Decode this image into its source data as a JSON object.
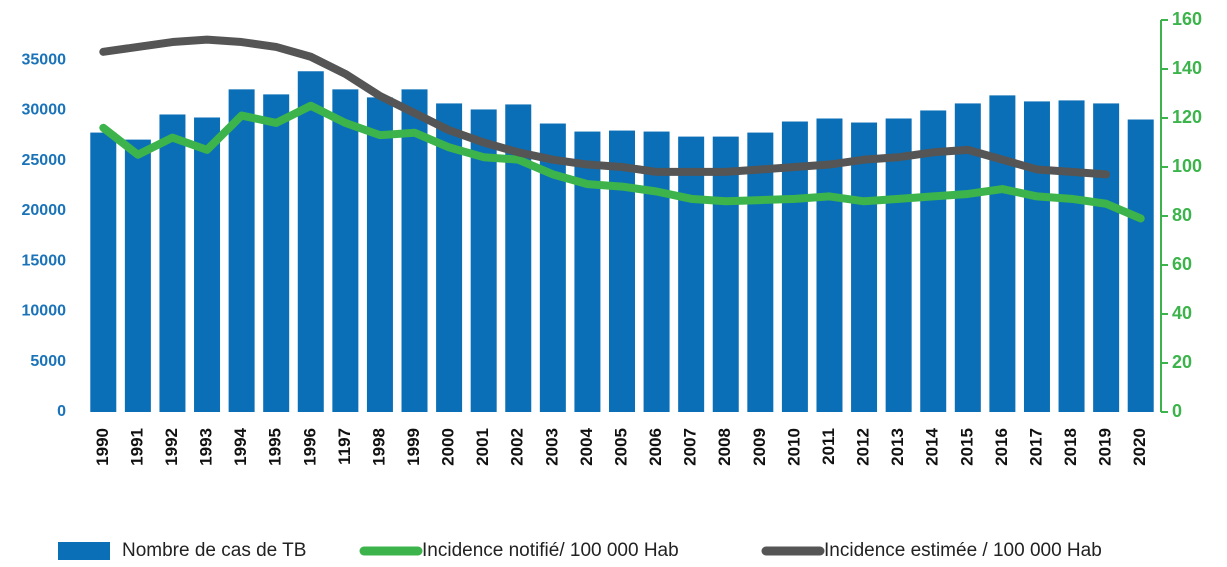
{
  "chart_data": {
    "type": "bar_line",
    "categories": [
      "1990",
      "1991",
      "1992",
      "1993",
      "1994",
      "1995",
      "1996",
      "1197",
      "1998",
      "1999",
      "2000",
      "2001",
      "2002",
      "2003",
      "2004",
      "2005",
      "2006",
      "2007",
      "2008",
      "2009",
      "2010",
      "2011",
      "2012",
      "2013",
      "2014",
      "2015",
      "2016",
      "2017",
      "2018",
      "2019",
      "2020"
    ],
    "series": [
      {
        "name": "Nombre de cas de TB",
        "color": "#0a6fb7",
        "kind": "bar",
        "values": [
          27800,
          27100,
          29600,
          29300,
          32100,
          31600,
          33900,
          32100,
          31300,
          32100,
          30700,
          30100,
          30600,
          28700,
          27900,
          28000,
          27900,
          27400,
          27400,
          27800,
          28900,
          29200,
          28800,
          29200,
          30000,
          30700,
          31500,
          30900,
          31000,
          30700,
          29100
        ]
      },
      {
        "name": "Incidence notifié/ 100 000 Hab",
        "color": "#3cb44b",
        "kind": "line",
        "axis": "y2",
        "values": [
          116,
          105,
          112,
          107,
          121,
          118,
          125,
          118,
          113,
          114,
          108,
          104,
          103,
          97,
          93,
          92,
          90,
          87,
          86,
          86.5,
          87,
          88,
          86,
          87,
          88,
          89,
          91,
          88,
          87,
          85,
          79
        ]
      },
      {
        "name": "Incidence estimée / 100 000 Hab",
        "color": "#555555",
        "kind": "line",
        "axis": "y2",
        "values": [
          147,
          149,
          151,
          152,
          151,
          149,
          145,
          138,
          129,
          122,
          115,
          110,
          106,
          103,
          101,
          100,
          98,
          98,
          98,
          99,
          100,
          101,
          103,
          104,
          106,
          107,
          103,
          99,
          98,
          97,
          null
        ]
      }
    ],
    "ylim": [
      0,
      39000
    ],
    "yticks": [
      0,
      5000,
      10000,
      15000,
      20000,
      25000,
      30000,
      35000
    ],
    "y2lim": [
      0,
      160
    ],
    "y2ticks": [
      0,
      20,
      40,
      60,
      80,
      100,
      120,
      140,
      160
    ],
    "legend": "bottom"
  }
}
